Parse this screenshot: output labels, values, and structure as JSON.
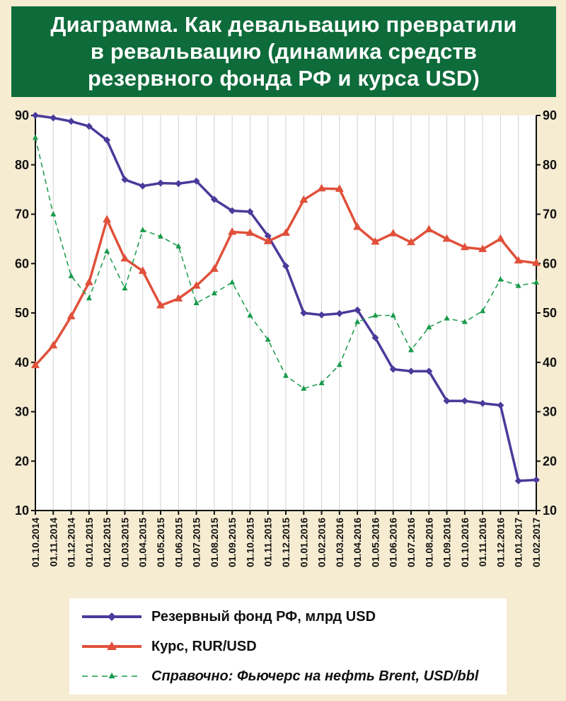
{
  "title": "Диаграмма. Как девальвацию превратили\nв ревальвацию  (динамика средств\nрезервного фонда РФ и курса USD)",
  "colors": {
    "background": "#f6ecd2",
    "title_bg": "#0e6b3a",
    "reserve": "#4b3a9a",
    "rate": "#e0503a",
    "brent": "#179a4a",
    "grid": "#d0d0d0"
  },
  "chart_data": {
    "type": "line",
    "ylim": [
      10,
      90
    ],
    "yticks": [
      10,
      20,
      30,
      40,
      50,
      60,
      70,
      80,
      90
    ],
    "categories": [
      "01.10.2014",
      "01.11.2014",
      "01.12.2014",
      "01.01.2015",
      "01.02.2015",
      "01.03.2015",
      "01.04.2015",
      "01.05.2015",
      "01.06.2015",
      "01.07.2015",
      "01.08.2015",
      "01.09.2015",
      "01.10.2015",
      "01.11.2015",
      "01.12.2015",
      "01.01.2016",
      "01.02.2016",
      "01.03.2016",
      "01.04.2016",
      "01.05.2016",
      "01.06.2016",
      "01.07.2016",
      "01.08.2016",
      "01.09.2016",
      "01.10.2016",
      "01.11.2016",
      "01.12.2016",
      "01.01.2017",
      "01.02.2017"
    ],
    "series": [
      {
        "key": "reserve",
        "name": "Резервный фонд РФ, млрд USD",
        "style": "solid-diamond",
        "values": [
          90.0,
          89.5,
          88.8,
          87.8,
          85.0,
          77.0,
          75.7,
          76.3,
          76.2,
          76.7,
          73.0,
          70.7,
          70.5,
          65.6,
          59.5,
          50.0,
          49.6,
          49.9,
          50.6,
          45.0,
          38.6,
          38.2,
          38.2,
          32.2,
          32.2,
          31.7,
          31.3,
          16.0,
          16.2
        ]
      },
      {
        "key": "rate",
        "name": "Курс, RUR/USD",
        "style": "solid-triangle",
        "values": [
          39.4,
          43.4,
          49.3,
          56.2,
          68.9,
          61.0,
          58.5,
          51.5,
          52.9,
          55.5,
          58.9,
          66.4,
          66.2,
          64.5,
          66.2,
          72.9,
          75.2,
          75.1,
          67.4,
          64.4,
          66.1,
          64.3,
          66.9,
          65.0,
          63.3,
          62.9,
          65.0,
          60.6,
          60.1
        ]
      },
      {
        "key": "brent",
        "name": "Справочно: Фьючерс на нефть Brent, USD/bbl",
        "style": "dashed-triangle",
        "values": [
          85.5,
          70.0,
          57.5,
          53.0,
          62.5,
          55.0,
          66.8,
          65.5,
          63.5,
          52.0,
          54.0,
          56.2,
          49.5,
          44.6,
          37.3,
          34.7,
          35.8,
          39.5,
          48.2,
          49.5,
          49.5,
          42.5,
          47.1,
          48.9,
          48.2,
          50.4,
          56.8,
          55.5,
          56.2
        ]
      }
    ]
  }
}
